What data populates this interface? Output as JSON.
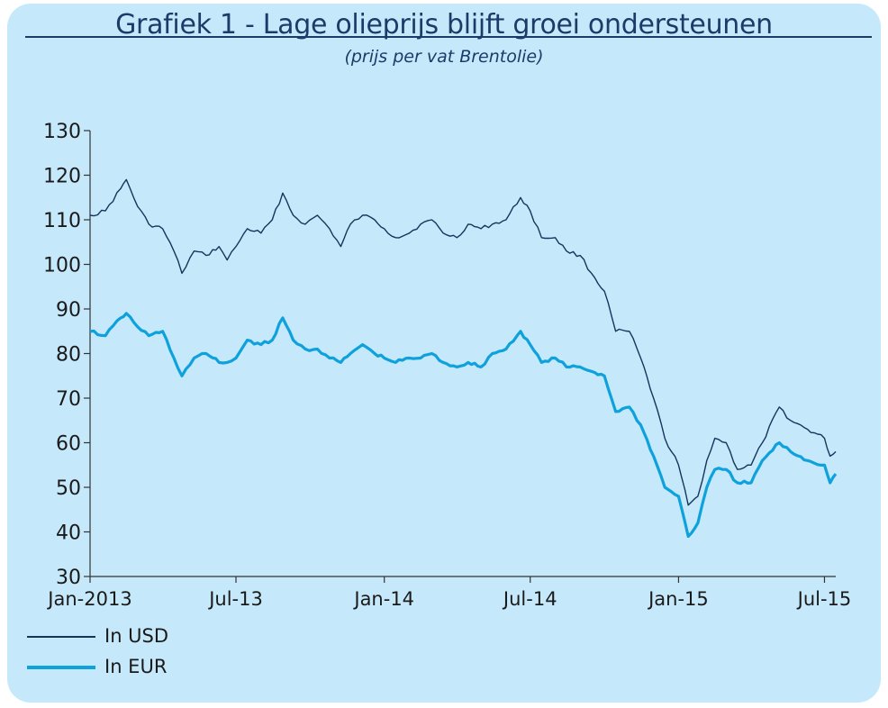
{
  "title": "Grafiek 1 - Lage olieprijs blijft groei ondersteunen",
  "subtitle": "(prijs per vat Brentolie)",
  "chart_data": {
    "type": "line",
    "ylim": [
      30,
      130
    ],
    "yticks": [
      30,
      40,
      50,
      60,
      70,
      80,
      90,
      100,
      110,
      120,
      130
    ],
    "xlim": [
      "2013-01-01",
      "2015-07-15"
    ],
    "xticks": [
      {
        "date": "2013-01-01",
        "label": "Jan-2013"
      },
      {
        "date": "2013-07-01",
        "label": "Jul-13"
      },
      {
        "date": "2014-01-01",
        "label": "Jan-14"
      },
      {
        "date": "2014-07-01",
        "label": "Jul-14"
      },
      {
        "date": "2015-01-01",
        "label": "Jan-15"
      },
      {
        "date": "2015-07-01",
        "label": "Jul-15"
      }
    ],
    "legend_position": "bottom-left",
    "series": [
      {
        "name": "In USD",
        "color": "#14365c",
        "points": [
          [
            "2013-01-01",
            111
          ],
          [
            "2013-01-20",
            112
          ],
          [
            "2013-02-08",
            117
          ],
          [
            "2013-02-15",
            119
          ],
          [
            "2013-03-01",
            113
          ],
          [
            "2013-03-15",
            109
          ],
          [
            "2013-04-01",
            108
          ],
          [
            "2013-04-15",
            103
          ],
          [
            "2013-04-25",
            98
          ],
          [
            "2013-05-10",
            103
          ],
          [
            "2013-05-25",
            102
          ],
          [
            "2013-06-10",
            104
          ],
          [
            "2013-06-20",
            101
          ],
          [
            "2013-07-01",
            104
          ],
          [
            "2013-07-15",
            108
          ],
          [
            "2013-08-01",
            107
          ],
          [
            "2013-08-15",
            110
          ],
          [
            "2013-08-28",
            116
          ],
          [
            "2013-09-10",
            111
          ],
          [
            "2013-09-25",
            109
          ],
          [
            "2013-10-10",
            111
          ],
          [
            "2013-10-25",
            108
          ],
          [
            "2013-11-08",
            104
          ],
          [
            "2013-11-20",
            109
          ],
          [
            "2013-12-05",
            111
          ],
          [
            "2013-12-20",
            110
          ],
          [
            "2014-01-01",
            108
          ],
          [
            "2014-01-15",
            106
          ],
          [
            "2014-02-01",
            107
          ],
          [
            "2014-02-15",
            109
          ],
          [
            "2014-03-01",
            110
          ],
          [
            "2014-03-15",
            107
          ],
          [
            "2014-04-01",
            106
          ],
          [
            "2014-04-15",
            109
          ],
          [
            "2014-05-01",
            108
          ],
          [
            "2014-05-15",
            109
          ],
          [
            "2014-06-01",
            110
          ],
          [
            "2014-06-19",
            115
          ],
          [
            "2014-07-01",
            112
          ],
          [
            "2014-07-15",
            106
          ],
          [
            "2014-08-01",
            106
          ],
          [
            "2014-08-15",
            103
          ],
          [
            "2014-09-01",
            102
          ],
          [
            "2014-09-15",
            98
          ],
          [
            "2014-10-01",
            94
          ],
          [
            "2014-10-15",
            85
          ],
          [
            "2014-11-01",
            85
          ],
          [
            "2014-11-15",
            79
          ],
          [
            "2014-12-01",
            70
          ],
          [
            "2014-12-15",
            61
          ],
          [
            "2015-01-01",
            55
          ],
          [
            "2015-01-13",
            46
          ],
          [
            "2015-01-25",
            48
          ],
          [
            "2015-02-05",
            56
          ],
          [
            "2015-02-15",
            61
          ],
          [
            "2015-03-01",
            60
          ],
          [
            "2015-03-15",
            54
          ],
          [
            "2015-04-01",
            55
          ],
          [
            "2015-04-15",
            60
          ],
          [
            "2015-05-06",
            68
          ],
          [
            "2015-05-20",
            65
          ],
          [
            "2015-06-10",
            63
          ],
          [
            "2015-07-01",
            61
          ],
          [
            "2015-07-08",
            57
          ],
          [
            "2015-07-15",
            58
          ]
        ]
      },
      {
        "name": "In EUR",
        "color": "#0ea1dc",
        "points": [
          [
            "2013-01-01",
            85
          ],
          [
            "2013-01-20",
            84
          ],
          [
            "2013-02-08",
            88
          ],
          [
            "2013-02-15",
            89
          ],
          [
            "2013-03-01",
            86
          ],
          [
            "2013-03-15",
            84
          ],
          [
            "2013-04-01",
            85
          ],
          [
            "2013-04-15",
            79
          ],
          [
            "2013-04-25",
            75
          ],
          [
            "2013-05-10",
            79
          ],
          [
            "2013-05-25",
            80
          ],
          [
            "2013-06-10",
            78
          ],
          [
            "2013-06-20",
            78
          ],
          [
            "2013-07-01",
            79
          ],
          [
            "2013-07-15",
            83
          ],
          [
            "2013-08-01",
            82
          ],
          [
            "2013-08-15",
            83
          ],
          [
            "2013-08-28",
            88
          ],
          [
            "2013-09-10",
            83
          ],
          [
            "2013-09-25",
            81
          ],
          [
            "2013-10-10",
            81
          ],
          [
            "2013-10-25",
            79
          ],
          [
            "2013-11-08",
            78
          ],
          [
            "2013-11-20",
            80
          ],
          [
            "2013-12-05",
            82
          ],
          [
            "2013-12-20",
            80
          ],
          [
            "2014-01-01",
            79
          ],
          [
            "2014-01-15",
            78
          ],
          [
            "2014-02-01",
            79
          ],
          [
            "2014-02-15",
            79
          ],
          [
            "2014-03-01",
            80
          ],
          [
            "2014-03-15",
            78
          ],
          [
            "2014-04-01",
            77
          ],
          [
            "2014-04-15",
            78
          ],
          [
            "2014-05-01",
            77
          ],
          [
            "2014-05-15",
            80
          ],
          [
            "2014-06-01",
            81
          ],
          [
            "2014-06-19",
            85
          ],
          [
            "2014-07-01",
            82
          ],
          [
            "2014-07-15",
            78
          ],
          [
            "2014-08-01",
            79
          ],
          [
            "2014-08-15",
            77
          ],
          [
            "2014-09-01",
            77
          ],
          [
            "2014-09-15",
            76
          ],
          [
            "2014-10-01",
            75
          ],
          [
            "2014-10-15",
            67
          ],
          [
            "2014-11-01",
            68
          ],
          [
            "2014-11-15",
            64
          ],
          [
            "2014-12-01",
            57
          ],
          [
            "2014-12-15",
            50
          ],
          [
            "2015-01-01",
            48
          ],
          [
            "2015-01-13",
            39
          ],
          [
            "2015-01-25",
            42
          ],
          [
            "2015-02-05",
            50
          ],
          [
            "2015-02-15",
            54
          ],
          [
            "2015-03-01",
            54
          ],
          [
            "2015-03-15",
            51
          ],
          [
            "2015-04-01",
            51
          ],
          [
            "2015-04-15",
            56
          ],
          [
            "2015-05-06",
            60
          ],
          [
            "2015-05-20",
            58
          ],
          [
            "2015-06-10",
            56
          ],
          [
            "2015-07-01",
            55
          ],
          [
            "2015-07-08",
            51
          ],
          [
            "2015-07-15",
            53
          ]
        ]
      }
    ]
  }
}
